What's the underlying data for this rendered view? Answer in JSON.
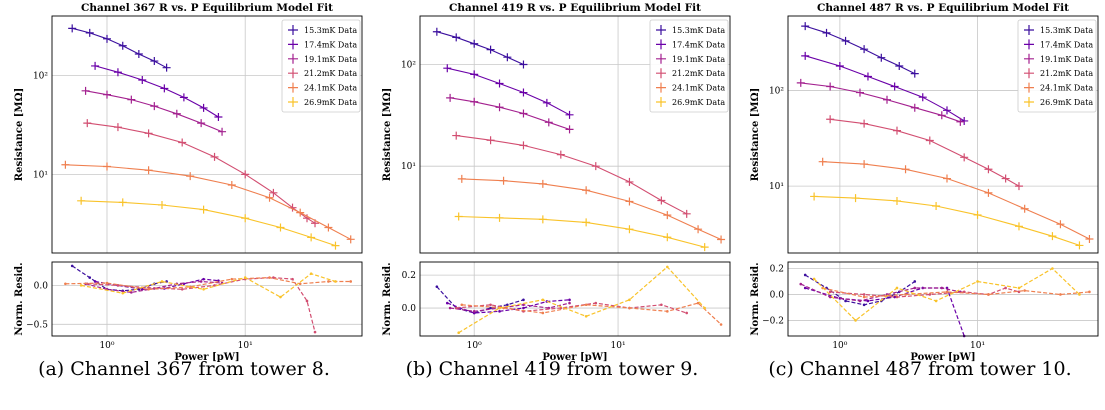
{
  "figure": {
    "legend_labels": [
      "15.3mK Data",
      "17.4mK Data",
      "19.1mK Data",
      "21.2mK Data",
      "24.1mK Data",
      "26.9mK Data"
    ],
    "series_colors": [
      "#3b0f9e",
      "#6a00a8",
      "#a3208f",
      "#d24e71",
      "#ef7f4f",
      "#f9c32a"
    ],
    "ylabel_main": "Resistance [MΩ]",
    "ylabel_resid": "Norm. Resid.",
    "xlabel": "Power [pW]"
  },
  "chart_data": [
    {
      "type": "line",
      "title": "Channel 367 R vs. P Equilibrium Model Fit",
      "caption": "(a) Channel 367 from tower 8.",
      "x_scale": "log",
      "y_scale": "log",
      "xlim": [
        0.4,
        70
      ],
      "ylim": [
        1.6,
        400
      ],
      "resid_ylim": [
        -0.65,
        0.3
      ],
      "x_ticks": [
        {
          "v": 1,
          "label": "10⁰"
        },
        {
          "v": 10,
          "label": "10¹"
        }
      ],
      "y_ticks": [
        {
          "v": 10,
          "label": "10¹"
        },
        {
          "v": 100,
          "label": "10²"
        }
      ],
      "resid_ticks": [
        {
          "v": 0.0,
          "label": "0.0"
        },
        {
          "v": -0.5,
          "label": "−0.5"
        }
      ],
      "grid": true,
      "legend": "top-right",
      "series": [
        {
          "name": "15.3mK Data",
          "x": [
            0.56,
            0.75,
            1.0,
            1.3,
            1.7,
            2.2,
            2.7
          ],
          "y": [
            300,
            270,
            235,
            200,
            165,
            140,
            120
          ],
          "resid": [
            0.25,
            0.1,
            -0.05,
            -0.07,
            -0.05,
            0.02,
            0.05
          ]
        },
        {
          "name": "17.4mK Data",
          "x": [
            0.82,
            1.2,
            1.8,
            2.6,
            3.6,
            5.0,
            6.4
          ],
          "y": [
            125,
            108,
            90,
            74,
            60,
            47,
            38
          ],
          "resid": [
            0.05,
            0.0,
            -0.05,
            -0.04,
            0.02,
            0.08,
            0.06
          ]
        },
        {
          "name": "19.1mK Data",
          "x": [
            0.7,
            1.0,
            1.5,
            2.2,
            3.2,
            4.8,
            6.8
          ],
          "y": [
            70,
            64,
            57,
            49,
            41,
            33,
            27
          ],
          "resid": [
            0.02,
            -0.05,
            -0.09,
            -0.04,
            0.02,
            0.05,
            0.03
          ]
        },
        {
          "name": "21.2mK Data",
          "x": [
            0.72,
            1.2,
            2.0,
            3.5,
            6,
            10,
            16,
            22,
            28,
            32
          ],
          "y": [
            33,
            30,
            26,
            21,
            15,
            10,
            6.5,
            4.6,
            3.6,
            3.2
          ],
          "resid": [
            0.02,
            0.0,
            -0.03,
            -0.05,
            0.0,
            0.08,
            0.1,
            0.08,
            -0.2,
            -0.6
          ]
        },
        {
          "name": "24.1mK Data",
          "x": [
            0.5,
            1.0,
            2.0,
            4.0,
            8,
            15,
            25,
            40,
            58
          ],
          "y": [
            12.5,
            12,
            11,
            9.6,
            7.8,
            5.8,
            4.1,
            2.9,
            2.2
          ],
          "resid": [
            0.02,
            0.03,
            -0.05,
            -0.02,
            0.08,
            0.1,
            0.02,
            0.05,
            0.05
          ]
        },
        {
          "name": "26.9mK Data",
          "x": [
            0.65,
            1.3,
            2.5,
            5,
            10,
            18,
            30,
            45
          ],
          "y": [
            5.4,
            5.2,
            4.9,
            4.4,
            3.6,
            2.9,
            2.3,
            1.9
          ],
          "resid": [
            0.0,
            -0.1,
            0.05,
            -0.05,
            0.1,
            -0.15,
            0.15,
            0.05
          ]
        }
      ]
    },
    {
      "type": "line",
      "title": "Channel 419 R vs. P Equilibrium Model Fit",
      "caption": "(b) Channel 419 from tower 9.",
      "x_scale": "log",
      "y_scale": "log",
      "xlim": [
        0.42,
        60
      ],
      "ylim": [
        1.4,
        300
      ],
      "resid_ylim": [
        -0.17,
        0.28
      ],
      "x_ticks": [
        {
          "v": 1,
          "label": "10⁰"
        },
        {
          "v": 10,
          "label": "10¹"
        }
      ],
      "y_ticks": [
        {
          "v": 10,
          "label": "10¹"
        },
        {
          "v": 100,
          "label": "10²"
        }
      ],
      "resid_ticks": [
        {
          "v": 0.2,
          "label": "0.2"
        },
        {
          "v": 0.0,
          "label": "0.0"
        }
      ],
      "grid": true,
      "legend": "top-right",
      "series": [
        {
          "name": "15.3mK Data",
          "x": [
            0.55,
            0.75,
            1.0,
            1.3,
            1.7,
            2.2
          ],
          "y": [
            210,
            185,
            160,
            140,
            118,
            100
          ],
          "resid": [
            0.13,
            0.0,
            -0.03,
            0.0,
            0.02,
            0.05
          ]
        },
        {
          "name": "17.4mK Data",
          "x": [
            0.65,
            1.0,
            1.5,
            2.2,
            3.2,
            4.6
          ],
          "y": [
            92,
            80,
            65,
            53,
            42,
            32
          ],
          "resid": [
            0.03,
            -0.03,
            -0.02,
            0.0,
            0.04,
            0.05
          ]
        },
        {
          "name": "19.1mK Data",
          "x": [
            0.68,
            1.0,
            1.5,
            2.2,
            3.3,
            4.6
          ],
          "y": [
            47,
            43,
            38,
            33,
            27,
            23
          ],
          "resid": [
            0.0,
            -0.02,
            0.0,
            0.02,
            0.0,
            0.03
          ]
        },
        {
          "name": "21.2mK Data",
          "x": [
            0.75,
            1.3,
            2.2,
            4,
            7,
            12,
            20,
            30
          ],
          "y": [
            20,
            18,
            16,
            13,
            10,
            7,
            4.6,
            3.4
          ],
          "resid": [
            0.0,
            0.02,
            -0.02,
            0.0,
            0.03,
            0.0,
            0.02,
            -0.03
          ]
        },
        {
          "name": "24.1mK Data",
          "x": [
            0.82,
            1.6,
            3,
            6,
            12,
            22,
            36,
            52
          ],
          "y": [
            7.5,
            7.2,
            6.7,
            5.8,
            4.5,
            3.3,
            2.4,
            1.9
          ],
          "resid": [
            0.02,
            0.0,
            -0.03,
            0.02,
            0.0,
            -0.02,
            0.03,
            -0.1
          ]
        },
        {
          "name": "26.9mK Data",
          "x": [
            0.78,
            1.5,
            3,
            6,
            12,
            22,
            40
          ],
          "y": [
            3.2,
            3.1,
            3.0,
            2.8,
            2.4,
            2.0,
            1.6
          ],
          "resid": [
            -0.15,
            0.0,
            0.05,
            -0.05,
            0.05,
            0.25,
            0.0
          ]
        }
      ]
    },
    {
      "type": "line",
      "title": "Channel 487 R vs. P Equilibrium Model Fit",
      "caption": "(c) Channel 487 from tower 10.",
      "x_scale": "log",
      "y_scale": "log",
      "xlim": [
        0.42,
        75
      ],
      "ylim": [
        2.0,
        600
      ],
      "resid_ylim": [
        -0.32,
        0.25
      ],
      "x_ticks": [
        {
          "v": 1,
          "label": "10⁰"
        },
        {
          "v": 10,
          "label": "10¹"
        }
      ],
      "y_ticks": [
        {
          "v": 10,
          "label": "10¹"
        },
        {
          "v": 100,
          "label": "10²"
        }
      ],
      "resid_ticks": [
        {
          "v": 0.2,
          "label": "0.2"
        },
        {
          "v": 0.0,
          "label": "0.0"
        },
        {
          "v": -0.2,
          "label": "−0.2"
        }
      ],
      "grid": true,
      "legend": "top-right",
      "series": [
        {
          "name": "15.3mK Data",
          "x": [
            0.56,
            0.8,
            1.1,
            1.5,
            2.0,
            2.7,
            3.5
          ],
          "y": [
            470,
            400,
            330,
            270,
            220,
            180,
            150
          ],
          "resid": [
            0.15,
            0.05,
            -0.05,
            -0.08,
            -0.05,
            0.02,
            0.1
          ]
        },
        {
          "name": "17.4mK Data",
          "x": [
            0.56,
            1.0,
            1.6,
            2.5,
            4.0,
            6.0,
            8.0
          ],
          "y": [
            230,
            180,
            140,
            110,
            85,
            62,
            48
          ],
          "resid": [
            0.05,
            -0.03,
            -0.05,
            -0.02,
            0.05,
            0.05,
            -0.32
          ]
        },
        {
          "name": "19.1mK Data",
          "x": [
            0.52,
            0.85,
            1.4,
            2.2,
            3.5,
            5.5,
            7.5
          ],
          "y": [
            120,
            110,
            95,
            80,
            66,
            55,
            47
          ],
          "resid": [
            0.08,
            -0.02,
            -0.05,
            0.0,
            0.05,
            0.05,
            0.02
          ]
        },
        {
          "name": "21.2mK Data",
          "x": [
            0.85,
            1.5,
            2.6,
            4.5,
            8,
            12,
            16,
            20
          ],
          "y": [
            50,
            45,
            38,
            30,
            20,
            15,
            12,
            10
          ],
          "resid": [
            0.02,
            0.0,
            -0.02,
            0.0,
            0.02,
            0.0,
            0.05,
            0.02
          ]
        },
        {
          "name": "24.1mK Data",
          "x": [
            0.75,
            1.5,
            3,
            6,
            12,
            22,
            40,
            65
          ],
          "y": [
            18,
            17,
            15,
            12,
            8.5,
            5.8,
            4.0,
            2.8
          ],
          "resid": [
            0.05,
            -0.02,
            0.0,
            0.02,
            0.0,
            0.03,
            0.0,
            0.02
          ]
        },
        {
          "name": "26.9mK Data",
          "x": [
            0.65,
            1.3,
            2.6,
            5,
            10,
            20,
            35,
            55
          ],
          "y": [
            7.8,
            7.5,
            7.0,
            6.2,
            5.0,
            3.8,
            3.0,
            2.4
          ],
          "resid": [
            0.12,
            -0.2,
            0.05,
            -0.05,
            0.1,
            0.05,
            0.2,
            0.0
          ]
        }
      ]
    }
  ]
}
